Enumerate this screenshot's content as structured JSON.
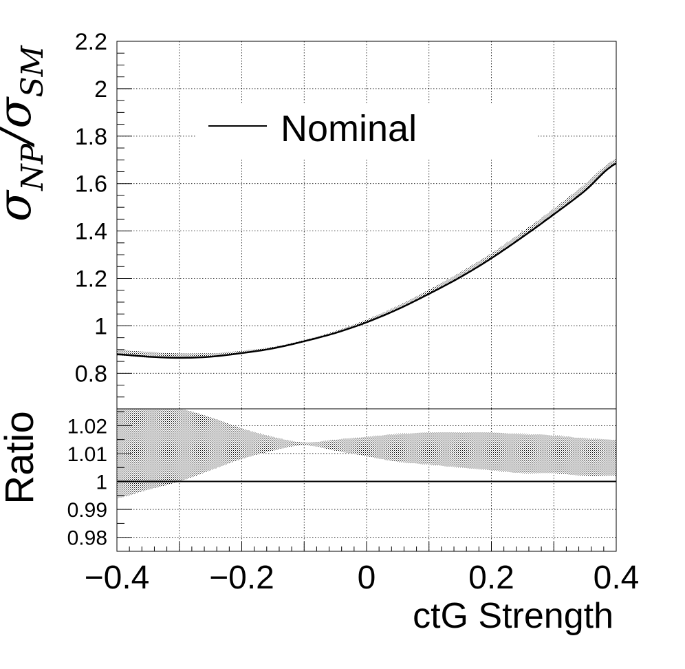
{
  "chart_data": [
    {
      "type": "line",
      "panel": "main",
      "ylabel_main": "σ",
      "ylabel_sub1": "NP",
      "ylabel_mid": "/σ",
      "ylabel_sub2": "SM",
      "legend": {
        "label": "Nominal",
        "placement": "top-left"
      },
      "xlim": [
        -0.4,
        0.4
      ],
      "ylim": [
        0.65,
        2.2
      ],
      "yticks": [
        "0.8",
        "1",
        "1.2",
        "1.4",
        "1.6",
        "1.8",
        "2",
        "2.2"
      ],
      "grid": true,
      "series": [
        {
          "name": "Nominal",
          "x": [
            -0.4,
            -0.35,
            -0.3,
            -0.25,
            -0.2,
            -0.15,
            -0.1,
            -0.05,
            0.0,
            0.05,
            0.1,
            0.15,
            0.2,
            0.25,
            0.3,
            0.35,
            0.4
          ],
          "y": [
            0.88,
            0.87,
            0.865,
            0.87,
            0.885,
            0.905,
            0.935,
            0.97,
            1.015,
            1.07,
            1.135,
            1.205,
            1.285,
            1.375,
            1.47,
            1.57,
            1.685
          ]
        }
      ],
      "band": {
        "x": [
          -0.4,
          -0.35,
          -0.3,
          -0.25,
          -0.2,
          -0.15,
          -0.1,
          -0.05,
          0.0,
          0.05,
          0.1,
          0.15,
          0.2,
          0.25,
          0.3,
          0.35,
          0.4
        ],
        "lo": [
          0.875,
          0.866,
          0.863,
          0.868,
          0.884,
          0.904,
          0.934,
          0.969,
          1.014,
          1.068,
          1.133,
          1.203,
          1.282,
          1.372,
          1.466,
          1.566,
          1.68
        ],
        "hi": [
          0.9,
          0.89,
          0.885,
          0.885,
          0.895,
          0.912,
          0.94,
          0.978,
          1.027,
          1.085,
          1.153,
          1.226,
          1.307,
          1.398,
          1.495,
          1.598,
          1.705
        ]
      }
    },
    {
      "type": "area",
      "panel": "ratio",
      "ylabel": "Ratio",
      "xlabel": "ctG Strength",
      "xlim": [
        -0.4,
        0.4
      ],
      "xticks": [
        "−0.4",
        "−0.2",
        "0",
        "0.2",
        "0.4"
      ],
      "ylim": [
        0.975,
        1.026
      ],
      "yticks": [
        "0.98",
        "0.99",
        "1",
        "1.01",
        "1.02"
      ],
      "grid": true,
      "reference_line": 1.0,
      "band": {
        "x": [
          -0.4,
          -0.35,
          -0.3,
          -0.25,
          -0.2,
          -0.15,
          -0.1,
          -0.05,
          0.0,
          0.05,
          0.1,
          0.15,
          0.2,
          0.25,
          0.3,
          0.35,
          0.4
        ],
        "lo": [
          0.994,
          0.997,
          1.0,
          1.004,
          1.008,
          1.011,
          1.013,
          1.011,
          1.009,
          1.007,
          1.006,
          1.005,
          1.004,
          1.003,
          1.003,
          1.002,
          1.002
        ],
        "hi": [
          1.026,
          1.026,
          1.026,
          1.023,
          1.019,
          1.016,
          1.014,
          1.015,
          1.016,
          1.017,
          1.0175,
          1.0175,
          1.0175,
          1.017,
          1.0165,
          1.0155,
          1.015
        ]
      }
    }
  ]
}
